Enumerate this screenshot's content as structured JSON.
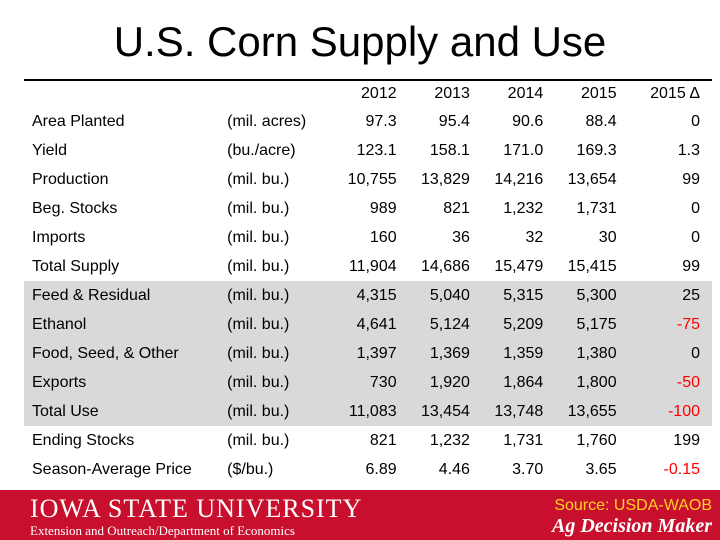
{
  "title": "U.S. Corn Supply and Use",
  "columns": [
    "2012",
    "2013",
    "2014",
    "2015",
    "2015 Δ"
  ],
  "rows": [
    {
      "label": "Area Planted",
      "unit": "(mil. acres)",
      "values": [
        "97.3",
        "95.4",
        "90.6",
        "88.4",
        "0"
      ],
      "delta_negative": false
    },
    {
      "label": "Yield",
      "unit": "(bu./acre)",
      "values": [
        "123.1",
        "158.1",
        "171.0",
        "169.3",
        "1.3"
      ],
      "delta_negative": false
    },
    {
      "label": "Production",
      "unit": "(mil. bu.)",
      "values": [
        "10,755",
        "13,829",
        "14,216",
        "13,654",
        "99"
      ],
      "delta_negative": false
    },
    {
      "label": "Beg. Stocks",
      "unit": "(mil. bu.)",
      "values": [
        "989",
        "821",
        "1,232",
        "1,731",
        "0"
      ],
      "delta_negative": false
    },
    {
      "label": "Imports",
      "unit": "(mil. bu.)",
      "values": [
        "160",
        "36",
        "32",
        "30",
        "0"
      ],
      "delta_negative": false
    },
    {
      "label": "Total Supply",
      "unit": "(mil. bu.)",
      "values": [
        "11,904",
        "14,686",
        "15,479",
        "15,415",
        "99"
      ],
      "delta_negative": false
    },
    {
      "label": "Feed & Residual",
      "unit": "(mil. bu.)",
      "values": [
        "4,315",
        "5,040",
        "5,315",
        "5,300",
        "25"
      ],
      "delta_negative": false
    },
    {
      "label": "Ethanol",
      "unit": "(mil. bu.)",
      "values": [
        "4,641",
        "5,124",
        "5,209",
        "5,175",
        "-75"
      ],
      "delta_negative": true
    },
    {
      "label": "Food, Seed, & Other",
      "unit": "(mil. bu.)",
      "values": [
        "1,397",
        "1,369",
        "1,359",
        "1,380",
        "0"
      ],
      "delta_negative": false
    },
    {
      "label": "Exports",
      "unit": "(mil. bu.)",
      "values": [
        "730",
        "1,920",
        "1,864",
        "1,800",
        "-50"
      ],
      "delta_negative": true
    },
    {
      "label": "Total Use",
      "unit": "(mil. bu.)",
      "values": [
        "11,083",
        "13,454",
        "13,748",
        "13,655",
        "-100"
      ],
      "delta_negative": true
    },
    {
      "label": "Ending Stocks",
      "unit": "(mil. bu.)",
      "values": [
        "821",
        "1,232",
        "1,731",
        "1,760",
        "199"
      ],
      "delta_negative": false
    },
    {
      "label": "Season-Average Price",
      "unit": "($/bu.)",
      "values": [
        "6.89",
        "4.46",
        "3.70",
        "3.65",
        "-0.15"
      ],
      "delta_negative": true
    }
  ],
  "shaded_rows": [
    6,
    7,
    8,
    9,
    10
  ],
  "colors": {
    "footer_bg": "#c8102e",
    "shade": "#d9d9d9",
    "negative": "#ff0000",
    "source_text": "#ffd21f"
  },
  "footer": {
    "university": "IOWA STATE UNIVERSITY",
    "department": "Extension and Outreach/Department of Economics",
    "source": "Source: USDA-WAOB",
    "brand": "Ag Decision Maker"
  }
}
